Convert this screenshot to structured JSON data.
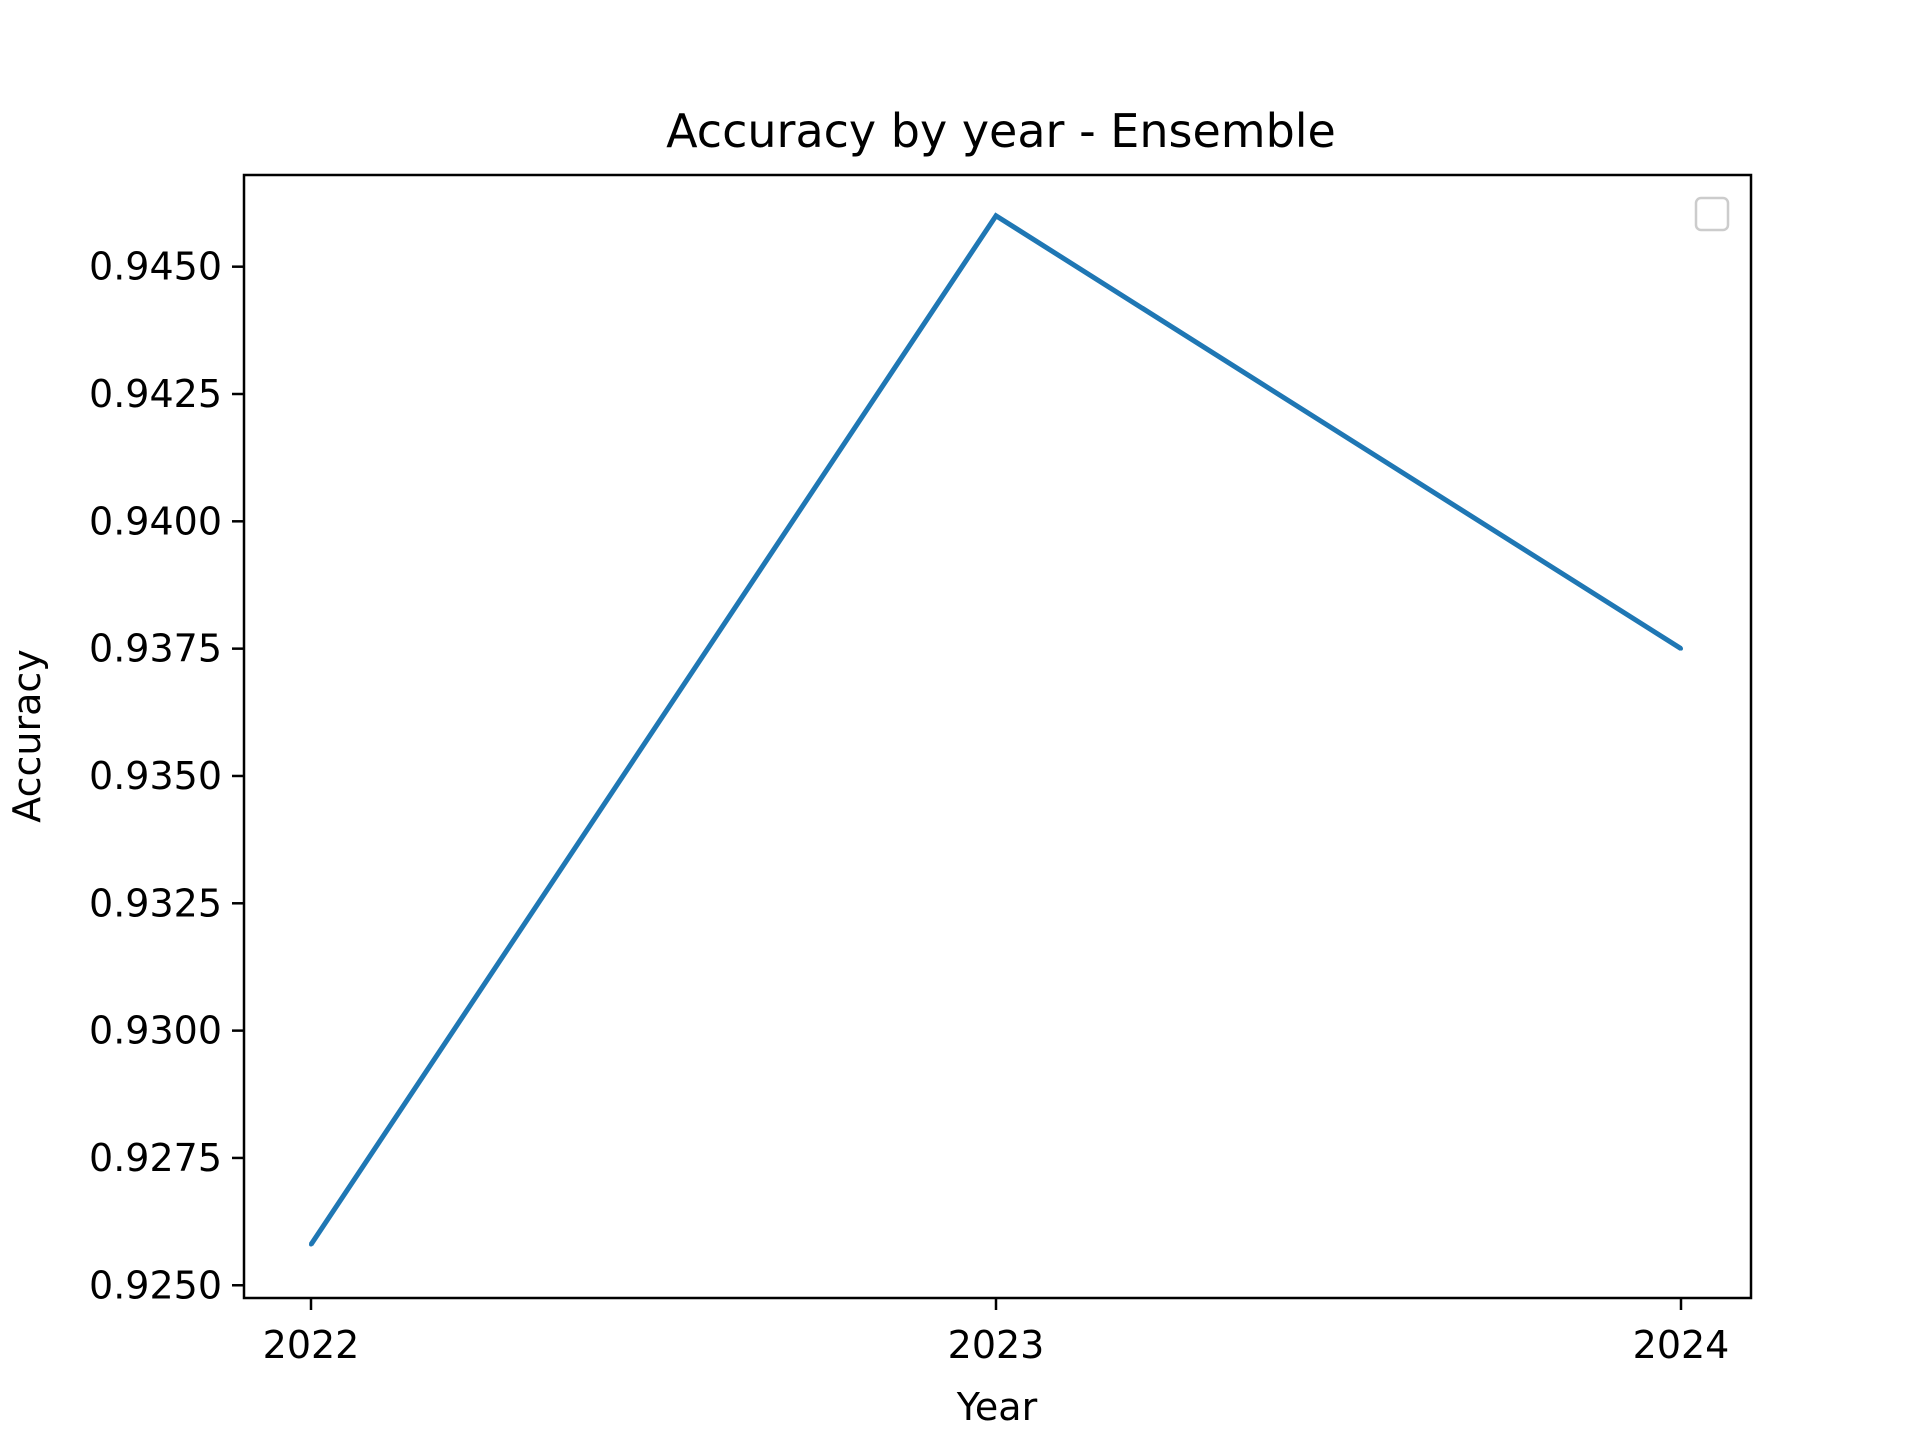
{
  "chart_data": {
    "type": "line",
    "title": "Accuracy by year - Ensemble",
    "xlabel": "Year",
    "ylabel": "Accuracy",
    "x": [
      "2022",
      "2023",
      "2024"
    ],
    "series": [
      {
        "values": [
          0.9258,
          0.946,
          0.9375
        ]
      }
    ],
    "ylim": [
      0.92475,
      0.9468
    ],
    "yticks": [
      0.925,
      0.9275,
      0.93,
      0.9325,
      0.935,
      0.9375,
      0.94,
      0.9425,
      0.945
    ],
    "ytick_labels": [
      "0.9250",
      "0.9275",
      "0.9300",
      "0.9325",
      "0.9350",
      "0.9375",
      "0.9400",
      "0.9425",
      "0.9450"
    ],
    "grid": false,
    "legend": {
      "placement": "upper right",
      "entries": []
    },
    "colors": {
      "series": "#1f77b4",
      "axes": "#000000",
      "legend_border": "#cccccc"
    }
  }
}
